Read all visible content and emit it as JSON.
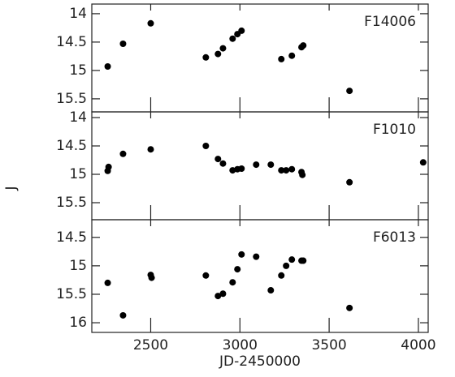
{
  "chart_data": [
    {
      "type": "scatter",
      "label": "F14006",
      "ylabel": "J",
      "invert_y": true,
      "xlim": [
        2170,
        4055
      ],
      "xticks": [
        2500,
        3000,
        3500,
        4000
      ],
      "ylim": [
        13.83,
        15.73
      ],
      "yticks": [
        14,
        14.5,
        15,
        15.5
      ],
      "color": "#000000",
      "x": [
        2259,
        2345,
        2500,
        2809,
        2877,
        2905,
        2959,
        2986,
        3009,
        3232,
        3291,
        3345,
        3355,
        3614
      ],
      "values": [
        14.93,
        14.53,
        14.17,
        14.77,
        14.71,
        14.61,
        14.44,
        14.36,
        14.3,
        14.8,
        14.74,
        14.59,
        14.56,
        15.36
      ]
    },
    {
      "type": "scatter",
      "label": "F1010",
      "invert_y": true,
      "xlim": [
        2170,
        4055
      ],
      "xticks": [
        2500,
        3000,
        3500,
        4000
      ],
      "ylim": [
        13.9,
        15.8
      ],
      "yticks": [
        14,
        14.5,
        15,
        15.5
      ],
      "color": "#000000",
      "x": [
        2264,
        2259,
        2345,
        2500,
        2809,
        2877,
        2905,
        2959,
        2986,
        3009,
        3091,
        3173,
        3232,
        3259,
        3291,
        3345,
        3350,
        3614,
        4027
      ],
      "values": [
        14.87,
        14.94,
        14.64,
        14.56,
        14.5,
        14.73,
        14.81,
        14.93,
        14.91,
        14.9,
        14.83,
        14.83,
        14.93,
        14.93,
        14.91,
        14.96,
        15.01,
        15.14,
        14.79
      ]
    },
    {
      "type": "scatter",
      "label": "F6013",
      "xlabel": "JD-2450000",
      "invert_y": true,
      "xlim": [
        2170,
        4055
      ],
      "xticks": [
        2500,
        3000,
        3500,
        4000
      ],
      "ylim": [
        14.19,
        16.17
      ],
      "yticks": [
        14.5,
        15,
        15.5,
        16
      ],
      "color": "#000000",
      "x": [
        2259,
        2345,
        2500,
        2505,
        2809,
        2877,
        2905,
        2959,
        2986,
        3009,
        3091,
        3173,
        3232,
        3259,
        3291,
        3345,
        3355,
        3614
      ],
      "values": [
        15.3,
        15.87,
        15.16,
        15.21,
        15.17,
        15.53,
        15.49,
        15.29,
        15.06,
        14.8,
        14.84,
        15.43,
        15.17,
        15.0,
        14.89,
        14.91,
        14.91,
        15.74
      ]
    }
  ]
}
